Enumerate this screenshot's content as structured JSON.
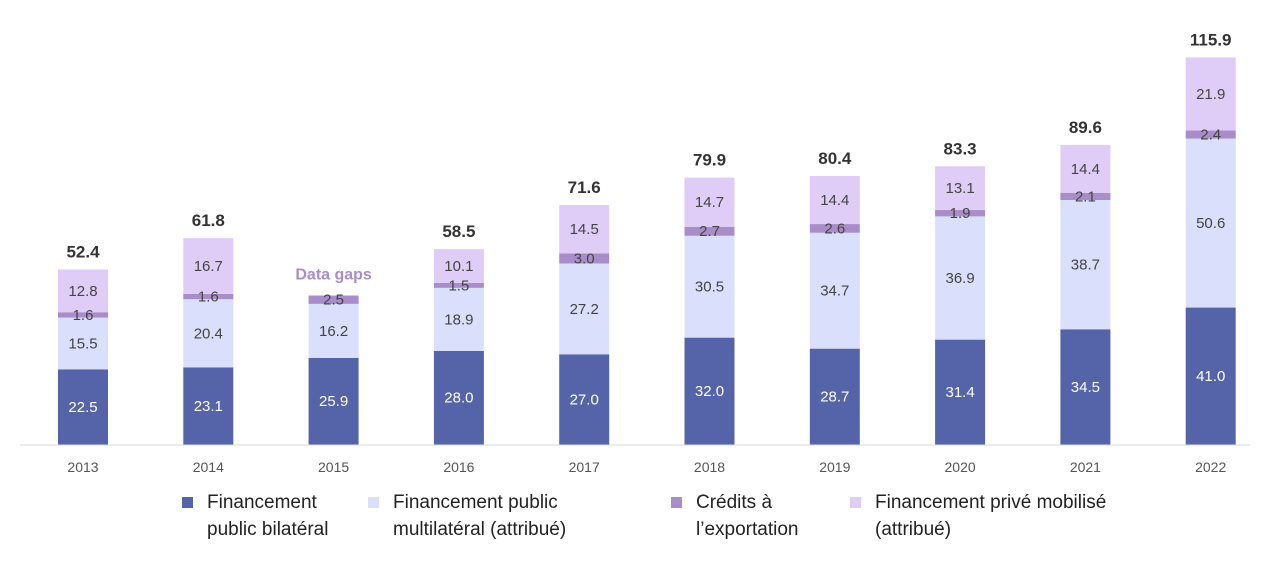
{
  "chart_data": {
    "type": "bar",
    "stacked": true,
    "categories": [
      "2013",
      "2014",
      "2015",
      "2016",
      "2017",
      "2018",
      "2019",
      "2020",
      "2021",
      "2022"
    ],
    "series": [
      {
        "name": "Financement public bilatéral",
        "color": "#5563a8",
        "values": [
          22.5,
          23.1,
          25.9,
          28.0,
          27.0,
          32.0,
          28.7,
          31.4,
          34.5,
          41.0
        ]
      },
      {
        "name": "Financement public multilatéral (attribué)",
        "color": "#dadffb",
        "values": [
          15.5,
          20.4,
          16.2,
          18.9,
          27.2,
          30.5,
          34.7,
          36.9,
          38.7,
          50.6
        ]
      },
      {
        "name": "Crédits à l’exportation",
        "color": "#a98dc8",
        "values": [
          1.6,
          1.6,
          2.5,
          1.5,
          3.0,
          2.7,
          2.6,
          1.9,
          2.1,
          2.4
        ]
      },
      {
        "name": "Financement privé mobilisé (attribué)",
        "color": "#dfcdf7",
        "values": [
          12.8,
          16.7,
          null,
          10.1,
          14.5,
          14.7,
          14.4,
          13.1,
          14.4,
          21.9
        ]
      }
    ],
    "totals": [
      "52.4",
      "61.8",
      null,
      "58.5",
      "71.6",
      "79.9",
      "80.4",
      "83.3",
      "89.6",
      "115.9"
    ],
    "annotations": [
      {
        "category": "2015",
        "text": "Data gaps",
        "color": "#a98dc8"
      }
    ],
    "ylim": [
      0,
      120
    ],
    "grid": false,
    "legend_position": "bottom"
  },
  "legend": {
    "items": [
      {
        "line1": "Financement",
        "line2": "public bilatéral"
      },
      {
        "line1": "Financement public",
        "line2": "multilatéral (attribué)"
      },
      {
        "line1": "Crédits à",
        "line2": "l’exportation"
      },
      {
        "line1": "Financement privé mobilisé",
        "line2": "(attribué)"
      }
    ]
  }
}
